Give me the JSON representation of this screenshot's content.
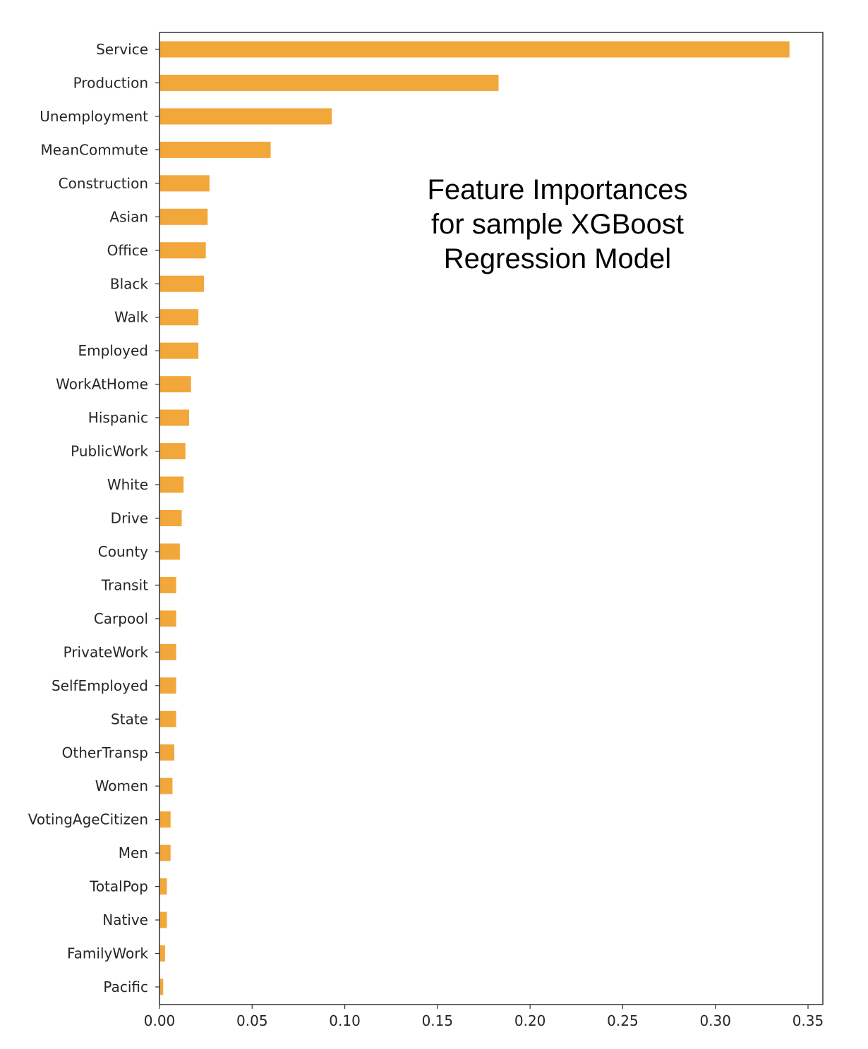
{
  "chart_data": {
    "type": "bar",
    "orientation": "horizontal",
    "title_lines": [
      "Feature Importances",
      "for sample XGBoost",
      "Regression Model"
    ],
    "xlabel": "",
    "ylabel": "",
    "xlim": [
      0,
      0.358
    ],
    "xticks": [
      0.0,
      0.05,
      0.1,
      0.15,
      0.2,
      0.25,
      0.3,
      0.35
    ],
    "xtick_labels": [
      "0.00",
      "0.05",
      "0.10",
      "0.15",
      "0.20",
      "0.25",
      "0.30",
      "0.35"
    ],
    "grid": false,
    "bar_color": "#f2a73b",
    "categories": [
      "Service",
      "Production",
      "Unemployment",
      "MeanCommute",
      "Construction",
      "Asian",
      "Office",
      "Black",
      "Walk",
      "Employed",
      "WorkAtHome",
      "Hispanic",
      "PublicWork",
      "White",
      "Drive",
      "County",
      "Transit",
      "Carpool",
      "PrivateWork",
      "SelfEmployed",
      "State",
      "OtherTransp",
      "Women",
      "VotingAgeCitizen",
      "Men",
      "TotalPop",
      "Native",
      "FamilyWork",
      "Pacific"
    ],
    "values": [
      0.34,
      0.183,
      0.093,
      0.06,
      0.027,
      0.026,
      0.025,
      0.024,
      0.021,
      0.021,
      0.017,
      0.016,
      0.014,
      0.013,
      0.012,
      0.011,
      0.009,
      0.009,
      0.009,
      0.009,
      0.009,
      0.008,
      0.007,
      0.006,
      0.006,
      0.004,
      0.004,
      0.003,
      0.002
    ]
  }
}
